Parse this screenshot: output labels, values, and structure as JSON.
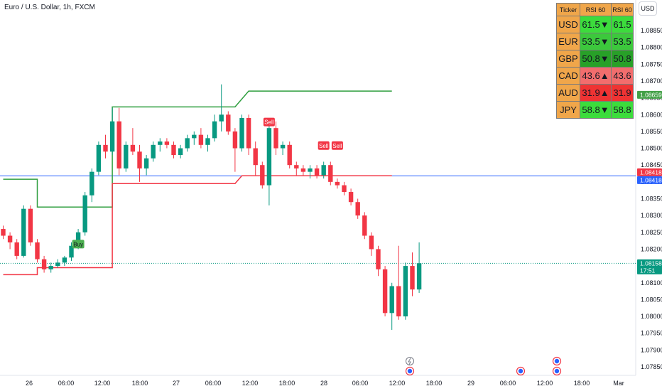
{
  "header": {
    "title": "Euro / U.S. Dollar, 1h, FXCM",
    "currency_badge": "USD"
  },
  "table": {
    "headers": [
      "Ticker",
      "RSI 60",
      "RSI 60"
    ],
    "rows": [
      {
        "ticker": "USD",
        "rsi": "61.5",
        "dir": "▼",
        "rsi2": "61.5",
        "color": "#3cdc3c"
      },
      {
        "ticker": "EUR",
        "rsi": "53.5",
        "dir": "▼",
        "rsi2": "53.5",
        "color": "#3cc83c"
      },
      {
        "ticker": "GBP",
        "rsi": "50.8",
        "dir": "▼",
        "rsi2": "50.8",
        "color": "#28a028"
      },
      {
        "ticker": "CAD",
        "rsi": "43.6",
        "dir": "▲",
        "rsi2": "43.6",
        "color": "#f26d6d"
      },
      {
        "ticker": "AUD",
        "rsi": "31.9",
        "dir": "▲",
        "rsi2": "31.9",
        "color": "#ef3333"
      },
      {
        "ticker": "JPY",
        "rsi": "58.8",
        "dir": "▼",
        "rsi2": "58.8",
        "color": "#3cdc3c"
      }
    ]
  },
  "chart_data": {
    "type": "candlestick",
    "title": "Euro / U.S. Dollar, 1h, FXCM",
    "ylim": [
      1.0785,
      1.089
    ],
    "y_ticks": [
      "1.08850",
      "1.08800",
      "1.08750",
      "1.08700",
      "1.08650",
      "1.08600",
      "1.08550",
      "1.08500",
      "1.08450",
      "1.08400",
      "1.08350",
      "1.08300",
      "1.08250",
      "1.08200",
      "1.08150",
      "1.08100",
      "1.08050",
      "1.08000",
      "1.07950",
      "1.07900",
      "1.07850"
    ],
    "x_ticks": [
      "26",
      "06:00",
      "12:00",
      "18:00",
      "27",
      "06:00",
      "12:00",
      "18:00",
      "28",
      "06:00",
      "12:00",
      "18:00",
      "29",
      "06:00",
      "12:00",
      "18:00",
      "Mar"
    ],
    "price_labels": [
      {
        "value": 1.08659,
        "text": "1.08659",
        "color": "#43a047"
      },
      {
        "value": 1.08418,
        "text": "1.08418",
        "color": "#f23645"
      },
      {
        "value": 1.08418,
        "text": "1.08418",
        "color": "#2962ff"
      },
      {
        "value": 1.08158,
        "text": "1.08158",
        "sub": "17:51",
        "color": "#089981"
      }
    ],
    "horizontal_lines": [
      {
        "value": 1.08418,
        "color": "#2962ff"
      },
      {
        "value": 1.08158,
        "color": "#089981",
        "style": "dotted"
      }
    ],
    "upper_band": [
      [
        0,
        1.08408
      ],
      [
        5,
        1.08408
      ],
      [
        5,
        1.08325
      ],
      [
        16,
        1.08325
      ],
      [
        16,
        1.08623
      ],
      [
        34,
        1.08623
      ],
      [
        36,
        1.0867
      ],
      [
        57,
        1.0867
      ]
    ],
    "lower_band": [
      [
        0,
        1.08124
      ],
      [
        5,
        1.08124
      ],
      [
        5,
        1.08145
      ],
      [
        16,
        1.08145
      ],
      [
        16,
        1.08395
      ],
      [
        34,
        1.08395
      ],
      [
        35,
        1.08418
      ],
      [
        57,
        1.08418
      ]
    ],
    "candles": [
      [
        1.0826,
        1.0827,
        1.0823,
        1.0824
      ],
      [
        1.0824,
        1.0825,
        1.082,
        1.0822
      ],
      [
        1.0822,
        1.0823,
        1.0817,
        1.0818
      ],
      [
        1.0818,
        1.0833,
        1.08175,
        1.0832
      ],
      [
        1.0832,
        1.0833,
        1.0821,
        1.0822
      ],
      [
        1.0822,
        1.0823,
        1.0816,
        1.0817
      ],
      [
        1.0817,
        1.0818,
        1.0813,
        1.0814
      ],
      [
        1.0814,
        1.0816,
        1.0813,
        1.0815
      ],
      [
        1.0815,
        1.0817,
        1.08145,
        1.0816
      ],
      [
        1.0816,
        1.0818,
        1.0815,
        1.08175
      ],
      [
        1.08175,
        1.0822,
        1.08165,
        1.0821
      ],
      [
        1.0821,
        1.0826,
        1.082,
        1.0825
      ],
      [
        1.0825,
        1.0837,
        1.0824,
        1.0836
      ],
      [
        1.0836,
        1.0844,
        1.0834,
        1.0843
      ],
      [
        1.0843,
        1.0852,
        1.0842,
        1.0851
      ],
      [
        1.0851,
        1.0854,
        1.0847,
        1.0849
      ],
      [
        1.0849,
        1.0862,
        1.0848,
        1.0858
      ],
      [
        1.0858,
        1.0862,
        1.0842,
        1.0844
      ],
      [
        1.0844,
        1.0852,
        1.0843,
        1.0851
      ],
      [
        1.0851,
        1.0856,
        1.0848,
        1.0849
      ],
      [
        1.0849,
        1.0851,
        1.084,
        1.0844
      ],
      [
        1.0844,
        1.0848,
        1.0842,
        1.0847
      ],
      [
        1.0847,
        1.0852,
        1.0846,
        1.0851
      ],
      [
        1.0851,
        1.0853,
        1.0849,
        1.0852
      ],
      [
        1.0852,
        1.0853,
        1.085,
        1.0851
      ],
      [
        1.0851,
        1.0852,
        1.0847,
        1.0848
      ],
      [
        1.0848,
        1.0851,
        1.0847,
        1.085
      ],
      [
        1.085,
        1.0854,
        1.0849,
        1.0853
      ],
      [
        1.0853,
        1.0855,
        1.0851,
        1.0854
      ],
      [
        1.0854,
        1.0856,
        1.085,
        1.0851
      ],
      [
        1.0851,
        1.0854,
        1.0849,
        1.0853
      ],
      [
        1.0853,
        1.086,
        1.0852,
        1.0858
      ],
      [
        1.0858,
        1.0869,
        1.0855,
        1.086
      ],
      [
        1.086,
        1.0861,
        1.0854,
        1.0855
      ],
      [
        1.0855,
        1.0856,
        1.0843,
        1.085
      ],
      [
        1.085,
        1.086,
        1.0849,
        1.0859
      ],
      [
        1.0859,
        1.086,
        1.0848,
        1.085
      ],
      [
        1.085,
        1.0852,
        1.0842,
        1.0845
      ],
      [
        1.0845,
        1.0846,
        1.0838,
        1.0839
      ],
      [
        1.0839,
        1.0858,
        1.0833,
        1.0856
      ],
      [
        1.0856,
        1.0858,
        1.0848,
        1.085
      ],
      [
        1.085,
        1.0852,
        1.0848,
        1.0851
      ],
      [
        1.0851,
        1.0852,
        1.0844,
        1.0845
      ],
      [
        1.0845,
        1.0846,
        1.0842,
        1.0844
      ],
      [
        1.0844,
        1.0845,
        1.0842,
        1.0843
      ],
      [
        1.0843,
        1.0845,
        1.0841,
        1.0844
      ],
      [
        1.0844,
        1.0845,
        1.0841,
        1.0842
      ],
      [
        1.0842,
        1.0846,
        1.0841,
        1.0845
      ],
      [
        1.0845,
        1.0846,
        1.0839,
        1.084
      ],
      [
        1.084,
        1.0841,
        1.0838,
        1.0839
      ],
      [
        1.0839,
        1.084,
        1.0836,
        1.0837
      ],
      [
        1.0837,
        1.0838,
        1.0833,
        1.0834
      ],
      [
        1.0834,
        1.0835,
        1.0829,
        1.083
      ],
      [
        1.083,
        1.0831,
        1.0823,
        1.0824
      ],
      [
        1.0824,
        1.0825,
        1.0818,
        1.082
      ],
      [
        1.082,
        1.0821,
        1.0812,
        1.0814
      ],
      [
        1.0814,
        1.0815,
        1.08,
        1.0801
      ],
      [
        1.0801,
        1.081,
        1.0796,
        1.0809
      ],
      [
        1.0809,
        1.0821,
        1.0799,
        1.08
      ],
      [
        1.08,
        1.0816,
        1.0799,
        1.0815
      ],
      [
        1.0815,
        1.0819,
        1.0806,
        1.0808
      ],
      [
        1.0808,
        1.0822,
        1.0807,
        1.08158
      ]
    ],
    "signals": [
      {
        "index": 11,
        "text": "Buy",
        "price": 1.08215,
        "color": "#4caf50"
      },
      {
        "index": 39,
        "text": "Sell",
        "price": 1.08578,
        "color": "#f23645"
      },
      {
        "index": 47,
        "text": "Sell",
        "price": 1.08508,
        "color": "#f23645"
      },
      {
        "index": 49,
        "text": "Sell",
        "price": 1.08508,
        "color": "#f23645"
      }
    ]
  }
}
